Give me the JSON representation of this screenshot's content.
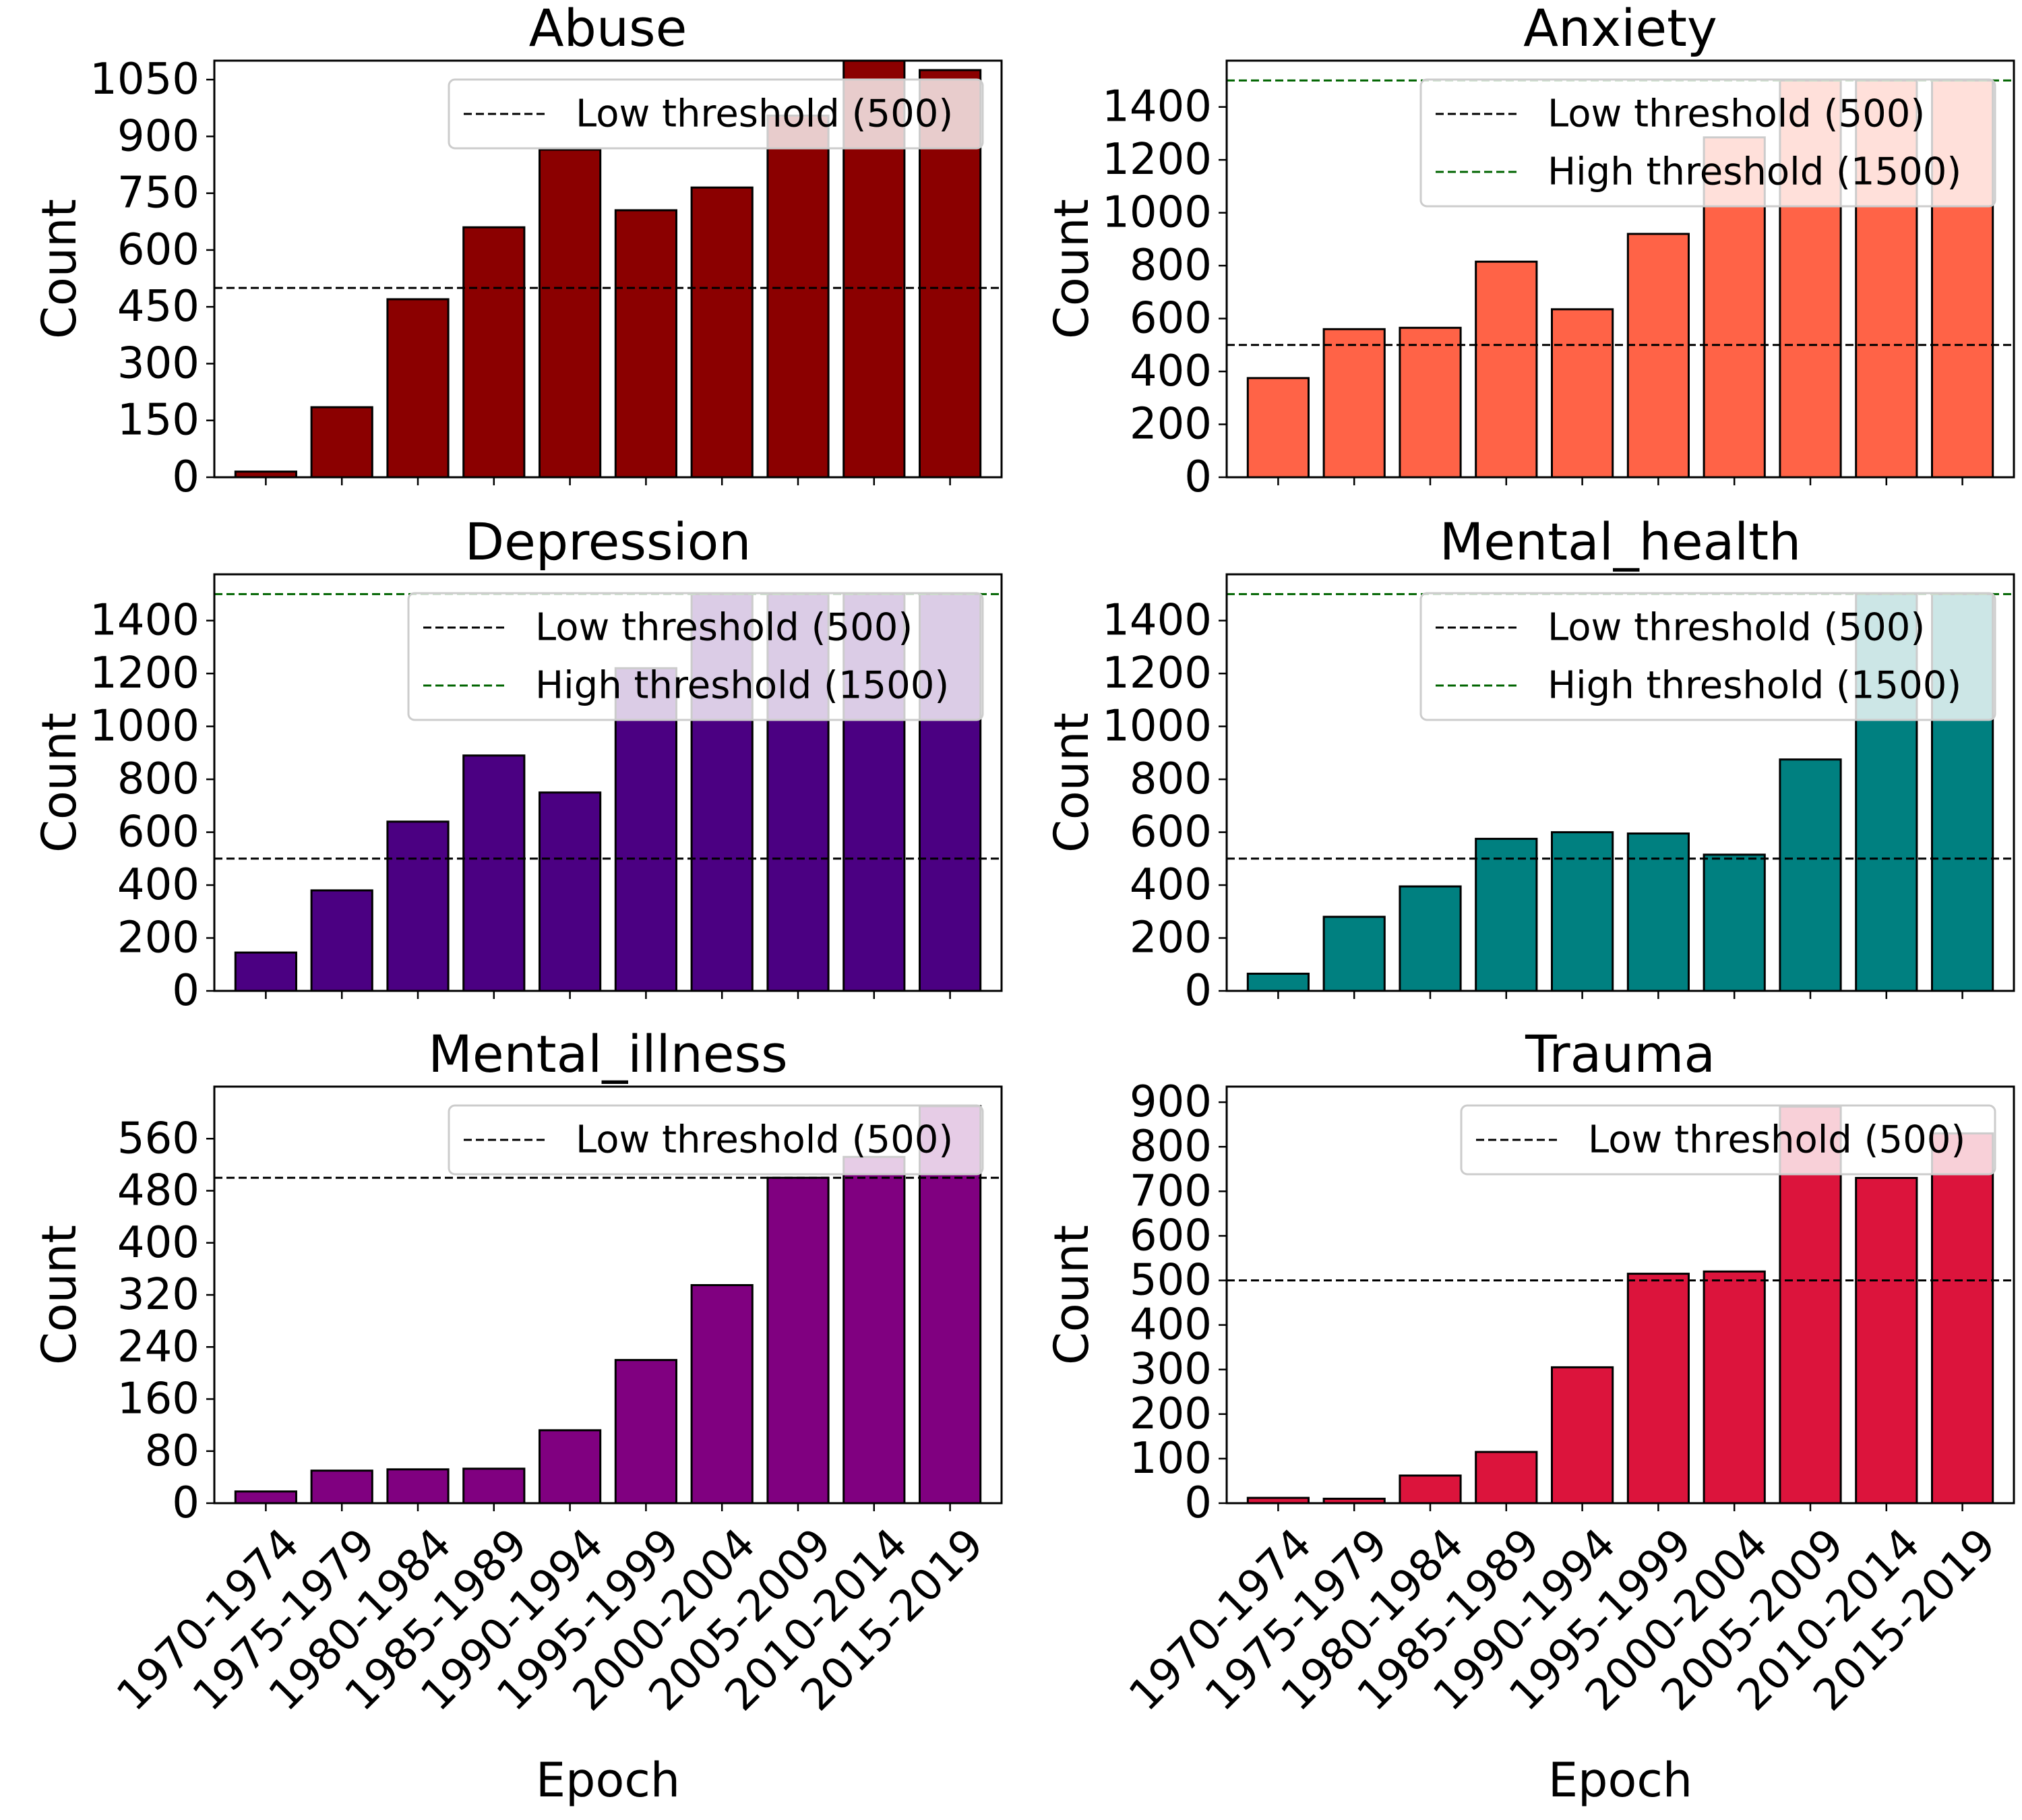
{
  "figure": {
    "xlabel": "Epoch",
    "ylabel": "Count"
  },
  "chart_data": [
    {
      "type": "bar",
      "title": "Abuse",
      "color": "#8b0000",
      "xlabel": "",
      "ylabel": "Count",
      "categories": [
        "1970-1974",
        "1975-1979",
        "1980-1984",
        "1985-1989",
        "1990-1994",
        "1995-1999",
        "2000-2004",
        "2005-2009",
        "2010-2014",
        "2015-2019"
      ],
      "values": [
        15,
        185,
        470,
        660,
        865,
        705,
        765,
        955,
        1100,
        1075
      ],
      "ylim": [
        0,
        1100
      ],
      "yticks": [
        0,
        150,
        300,
        450,
        600,
        750,
        900,
        1050
      ],
      "thresholds": [
        {
          "label": "Low threshold (500)",
          "value": 500,
          "color": "#000000"
        }
      ],
      "legend": [
        "Low threshold (500)"
      ],
      "legend_position": "top-right"
    },
    {
      "type": "bar",
      "title": "Anxiety",
      "color": "#ff6347",
      "xlabel": "",
      "ylabel": "Count",
      "categories": [
        "1970-1974",
        "1975-1979",
        "1980-1984",
        "1985-1989",
        "1990-1994",
        "1995-1999",
        "2000-2004",
        "2005-2009",
        "2010-2014",
        "2015-2019"
      ],
      "values": [
        375,
        560,
        565,
        815,
        635,
        920,
        1285,
        1500,
        1500,
        1500
      ],
      "ylim": [
        0,
        1575
      ],
      "yticks": [
        0,
        200,
        400,
        600,
        800,
        1000,
        1200,
        1400
      ],
      "thresholds": [
        {
          "label": "Low threshold (500)",
          "value": 500,
          "color": "#000000"
        },
        {
          "label": "High threshold (1500)",
          "value": 1500,
          "color": "#006400"
        }
      ],
      "legend": [
        "Low threshold (500)",
        "High threshold (1500)"
      ],
      "legend_position": "top-right"
    },
    {
      "type": "bar",
      "title": "Depression",
      "color": "#4b0082",
      "xlabel": "",
      "ylabel": "Count",
      "categories": [
        "1970-1974",
        "1975-1979",
        "1980-1984",
        "1985-1989",
        "1990-1994",
        "1995-1999",
        "2000-2004",
        "2005-2009",
        "2010-2014",
        "2015-2019"
      ],
      "values": [
        145,
        380,
        640,
        890,
        750,
        1220,
        1500,
        1500,
        1500,
        1500
      ],
      "ylim": [
        0,
        1575
      ],
      "yticks": [
        0,
        200,
        400,
        600,
        800,
        1000,
        1200,
        1400
      ],
      "thresholds": [
        {
          "label": "Low threshold (500)",
          "value": 500,
          "color": "#000000"
        },
        {
          "label": "High threshold (1500)",
          "value": 1500,
          "color": "#006400"
        }
      ],
      "legend": [
        "Low threshold (500)",
        "High threshold (1500)"
      ],
      "legend_position": "top-right"
    },
    {
      "type": "bar",
      "title": "Mental_health",
      "color": "#008080",
      "xlabel": "",
      "ylabel": "Count",
      "categories": [
        "1970-1974",
        "1975-1979",
        "1980-1984",
        "1985-1989",
        "1990-1994",
        "1995-1999",
        "2000-2004",
        "2005-2009",
        "2010-2014",
        "2015-2019"
      ],
      "values": [
        65,
        280,
        395,
        575,
        600,
        595,
        515,
        875,
        1500,
        1500
      ],
      "ylim": [
        0,
        1575
      ],
      "yticks": [
        0,
        200,
        400,
        600,
        800,
        1000,
        1200,
        1400
      ],
      "thresholds": [
        {
          "label": "Low threshold (500)",
          "value": 500,
          "color": "#000000"
        },
        {
          "label": "High threshold (1500)",
          "value": 1500,
          "color": "#006400"
        }
      ],
      "legend": [
        "Low threshold (500)",
        "High threshold (1500)"
      ],
      "legend_position": "top-right"
    },
    {
      "type": "bar",
      "title": "Mental_illness",
      "color": "#800080",
      "xlabel": "Epoch",
      "ylabel": "Count",
      "categories": [
        "1970-1974",
        "1975-1979",
        "1980-1984",
        "1985-1989",
        "1990-1994",
        "1995-1999",
        "2000-2004",
        "2005-2009",
        "2010-2014",
        "2015-2019"
      ],
      "values": [
        18,
        50,
        52,
        53,
        112,
        220,
        335,
        500,
        532,
        610
      ],
      "ylim": [
        0,
        640
      ],
      "yticks": [
        0,
        80,
        160,
        240,
        320,
        400,
        480,
        560
      ],
      "thresholds": [
        {
          "label": "Low threshold (500)",
          "value": 500,
          "color": "#000000"
        }
      ],
      "legend": [
        "Low threshold (500)"
      ],
      "legend_position": "top-right"
    },
    {
      "type": "bar",
      "title": "Trauma",
      "color": "#dc143c",
      "xlabel": "Epoch",
      "ylabel": "Count",
      "categories": [
        "1970-1974",
        "1975-1979",
        "1980-1984",
        "1985-1989",
        "1990-1994",
        "1995-1999",
        "2000-2004",
        "2005-2009",
        "2010-2014",
        "2015-2019"
      ],
      "values": [
        12,
        10,
        62,
        115,
        305,
        515,
        520,
        890,
        730,
        830
      ],
      "ylim": [
        0,
        935
      ],
      "yticks": [
        0,
        100,
        200,
        300,
        400,
        500,
        600,
        700,
        800,
        900
      ],
      "thresholds": [
        {
          "label": "Low threshold (500)",
          "value": 500,
          "color": "#000000"
        }
      ],
      "legend": [
        "Low threshold (500)"
      ],
      "legend_position": "top-right"
    }
  ]
}
